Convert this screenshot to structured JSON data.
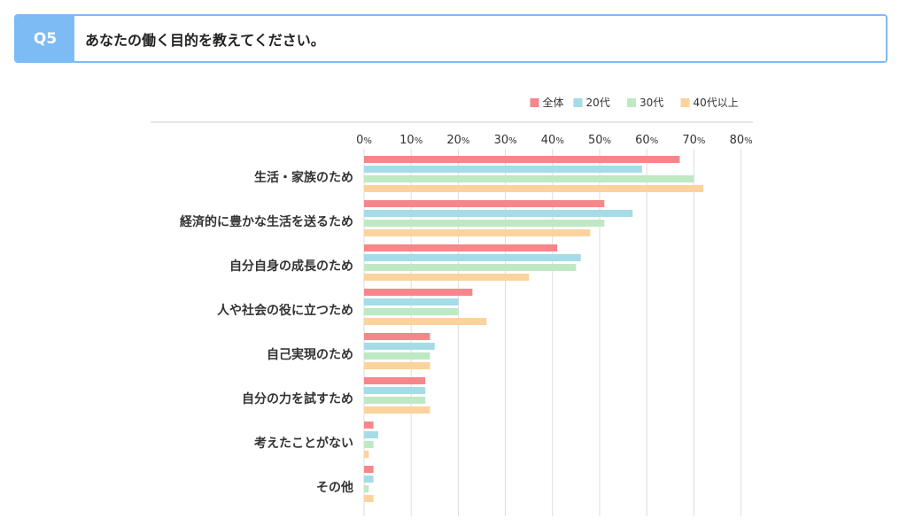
{
  "question": {
    "number": "Q5",
    "text": "あなたの働く目的を教えてください。"
  },
  "colors": {
    "accent": "#7dbbf5",
    "series": [
      "#f7868b",
      "#a6dbe8",
      "#bfe8c4",
      "#fcd39c"
    ],
    "grid": "#dddddd",
    "axis_line": "#cccccc"
  },
  "chart_data": {
    "type": "bar",
    "orientation": "horizontal",
    "categories": [
      "生活・家族のため",
      "経済的に豊かな生活を送るため",
      "自分自身の成長のため",
      "人や社会の役に立つため",
      "自己実現のため",
      "自分の力を試すため",
      "考えたことがない",
      "その他"
    ],
    "series": [
      {
        "name": "全体",
        "values": [
          67,
          51,
          41,
          23,
          14,
          13,
          2,
          2
        ]
      },
      {
        "name": "20代",
        "values": [
          59,
          57,
          46,
          20,
          15,
          13,
          3,
          2
        ]
      },
      {
        "name": "30代",
        "values": [
          70,
          51,
          45,
          20,
          14,
          13,
          2,
          1
        ]
      },
      {
        "name": "40代以上",
        "values": [
          72,
          48,
          35,
          26,
          14,
          14,
          1,
          2
        ]
      }
    ],
    "xlim": [
      0,
      80
    ],
    "xticks": [
      {
        "value": 0,
        "num": "0",
        "unit": "%"
      },
      {
        "value": 10,
        "num": "10",
        "unit": "%"
      },
      {
        "value": 20,
        "num": "20",
        "unit": "%"
      },
      {
        "value": 30,
        "num": "30",
        "unit": "%"
      },
      {
        "value": 40,
        "num": "40",
        "unit": "%"
      },
      {
        "value": 50,
        "num": "50",
        "unit": "%"
      },
      {
        "value": 60,
        "num": "60",
        "unit": "%"
      },
      {
        "value": 70,
        "num": "70",
        "unit": "%"
      },
      {
        "value": 80,
        "num": "80",
        "unit": "%"
      }
    ],
    "grid": true,
    "legend_position": "top-right"
  }
}
